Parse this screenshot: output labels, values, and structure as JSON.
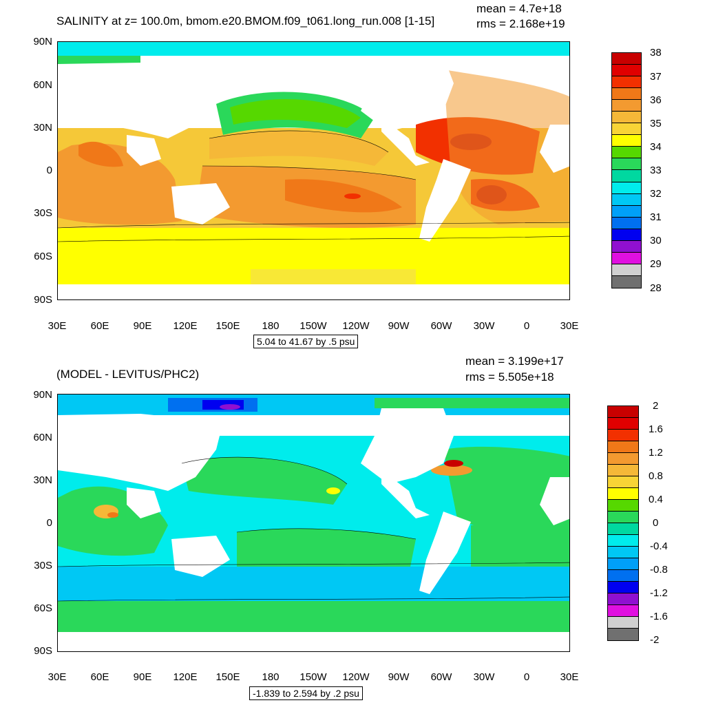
{
  "panels": [
    {
      "title": "SALINITY at z= 100.0m, bmom.e20.BMOM.f09_t061.long_run.008 [1-15]",
      "stat_mean": "mean = 4.7e+18",
      "stat_rms": "rms = 2.168e+19",
      "range_note": "5.04 to 41.67 by .5 psu",
      "colorbar_labels": [
        "38",
        "37",
        "36",
        "35",
        "34",
        "33",
        "32",
        "31",
        "30",
        "29",
        "28"
      ],
      "colorbar_colors": [
        "#c80000",
        "#e00000",
        "#f23000",
        "#f07818",
        "#f39a30",
        "#f5b838",
        "#f8d436",
        "#ffff00",
        "#56d800",
        "#2ad85a",
        "#00d8a0",
        "#00ecec",
        "#00c8f4",
        "#00a0f8",
        "#0070f0",
        "#0000f0",
        "#9010d0",
        "#e010e0",
        "#d0d0d0",
        "#707070"
      ]
    },
    {
      "title": "(MODEL - LEVITUS/PHC2)",
      "stat_mean": "mean = 3.199e+17",
      "stat_rms": "rms = 5.505e+18",
      "range_note": "-1.839 to 2.594 by .2 psu",
      "colorbar_labels": [
        "2",
        "1.6",
        "1.2",
        "0.8",
        "0.4",
        "0",
        "-0.4",
        "-0.8",
        "-1.2",
        "-1.6",
        "-2"
      ],
      "colorbar_colors": [
        "#c80000",
        "#e00000",
        "#f23000",
        "#f07818",
        "#f39a30",
        "#f5b838",
        "#f8d436",
        "#ffff00",
        "#56d800",
        "#2ad85a",
        "#00d8a0",
        "#00ecec",
        "#00c8f4",
        "#00a0f8",
        "#0070f0",
        "#0000f0",
        "#9010d0",
        "#e010e0",
        "#d0d0d0",
        "#707070"
      ]
    }
  ],
  "lat_labels": [
    "90N",
    "60N",
    "30N",
    "0",
    "30S",
    "60S",
    "90S"
  ],
  "lon_labels": [
    "30E",
    "60E",
    "90E",
    "120E",
    "150E",
    "180",
    "150W",
    "120W",
    "90W",
    "60W",
    "30W",
    "0",
    "30E"
  ]
}
